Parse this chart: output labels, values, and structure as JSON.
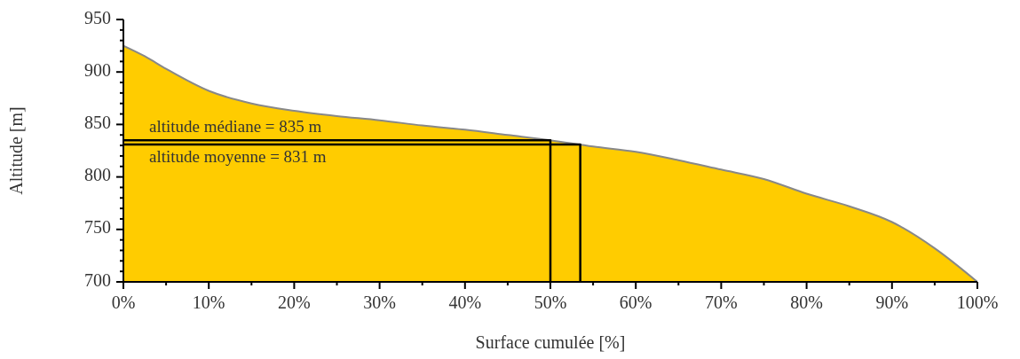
{
  "chart_data": {
    "type": "area",
    "xlabel": "Surface cumulée [%]",
    "ylabel": "Altitude [m]",
    "x": [
      0,
      2.5,
      5,
      10,
      15,
      20,
      25,
      30,
      35,
      40,
      45,
      50,
      55,
      60,
      65,
      70,
      75,
      80,
      85,
      90,
      95,
      100
    ],
    "series": [
      {
        "color": "#ffcc00",
        "values": [
          925,
          915,
          903,
          882,
          870,
          863,
          858,
          854,
          849,
          845,
          840,
          835,
          829,
          824,
          816,
          807,
          798,
          784,
          772,
          757,
          732,
          700
        ]
      },
      {
        "type": "line",
        "color": "#000000",
        "x": [
          0,
          50,
          50
        ],
        "values": [
          835,
          835,
          700
        ]
      },
      {
        "type": "line",
        "color": "#000000",
        "x": [
          0,
          53.5,
          53.5
        ],
        "values": [
          831,
          831,
          700
        ]
      }
    ],
    "xlim": [
      0,
      100
    ],
    "xticks": [
      {
        "value": 0,
        "label": "0%"
      },
      {
        "value": 5,
        "label": null
      },
      {
        "value": 10,
        "label": "10%"
      },
      {
        "value": 15,
        "label": null
      },
      {
        "value": 20,
        "label": "20%"
      },
      {
        "value": 25,
        "label": null
      },
      {
        "value": 30,
        "label": "30%"
      },
      {
        "value": 35,
        "label": null
      },
      {
        "value": 40,
        "label": "40%"
      },
      {
        "value": 45,
        "label": null
      },
      {
        "value": 50,
        "label": "50%"
      },
      {
        "value": 55,
        "label": null
      },
      {
        "value": 60,
        "label": "60%"
      },
      {
        "value": 65,
        "label": null
      },
      {
        "value": 70,
        "label": "70%"
      },
      {
        "value": 75,
        "label": null
      },
      {
        "value": 80,
        "label": "80%"
      },
      {
        "value": 85,
        "label": null
      },
      {
        "value": 90,
        "label": "90%"
      },
      {
        "value": 95,
        "label": null
      },
      {
        "value": 100,
        "label": "100%"
      }
    ],
    "ylim": [
      700,
      950
    ],
    "yticks": [
      700,
      {
        "value": 710,
        "label": null
      },
      {
        "value": 720,
        "label": null
      },
      {
        "value": 730,
        "label": null
      },
      {
        "value": 740,
        "label": null
      },
      750,
      {
        "value": 760,
        "label": null
      },
      {
        "value": 770,
        "label": null
      },
      {
        "value": 780,
        "label": null
      },
      {
        "value": 790,
        "label": null
      },
      800,
      {
        "value": 810,
        "label": null
      },
      {
        "value": 820,
        "label": null
      },
      {
        "value": 830,
        "label": null
      },
      {
        "value": 840,
        "label": null
      },
      850,
      {
        "value": 860,
        "label": null
      },
      {
        "value": 870,
        "label": null
      },
      {
        "value": 880,
        "label": null
      },
      {
        "value": 890,
        "label": null
      },
      900,
      {
        "value": 910,
        "label": null
      },
      {
        "value": 920,
        "label": null
      },
      {
        "value": 930,
        "label": null
      },
      {
        "value": 940,
        "label": null
      },
      950
    ],
    "grid": false,
    "legend": false,
    "marker": "none",
    "line_style": "solid",
    "annotations": [
      "altitude médiane = 835 m",
      "altitude moyenne = 831 m"
    ]
  }
}
